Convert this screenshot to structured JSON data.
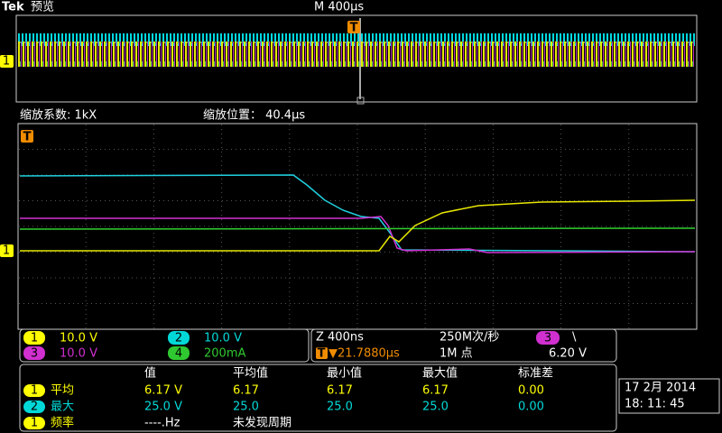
{
  "header": {
    "brand": "Tek",
    "mode": "预览",
    "timebase": "M 400μs"
  },
  "markers": {
    "trigger": "T",
    "channel1": "1"
  },
  "zoom": {
    "factor": "缩放系数: 1kX",
    "position": "缩放位置： 40.4μs"
  },
  "channels": [
    {
      "num": "1",
      "scale": "10.0 V"
    },
    {
      "num": "2",
      "scale": "10.0 V"
    },
    {
      "num": "3",
      "scale": "10.0 V"
    },
    {
      "num": "4",
      "scale": "200mA"
    }
  ],
  "acquisition": {
    "zoom": "Z 400ns",
    "rate": "250M次/秒",
    "trigger_pos": "▼21.7880μs",
    "points": "1M 点",
    "trigger_ch": "3",
    "slope": "\\",
    "level": "6.20 V"
  },
  "measurements": {
    "headers": [
      "值",
      "平均值",
      "最小值",
      "最大值",
      "标准差"
    ],
    "rows": [
      {
        "ch": "1",
        "name": "平均",
        "values": [
          "6.17 V",
          "6.17",
          "6.17",
          "6.17",
          "0.00"
        ]
      },
      {
        "ch": "2",
        "name": "最大",
        "values": [
          "25.0 V",
          "25.0",
          "25.0",
          "25.0",
          "0.00"
        ]
      },
      {
        "ch": "1",
        "name": "频率",
        "values": [
          "----.Hz",
          "未发现周期"
        ]
      }
    ]
  },
  "datetime": {
    "date": "17 2月   2014",
    "time": "18: 11: 45"
  }
}
